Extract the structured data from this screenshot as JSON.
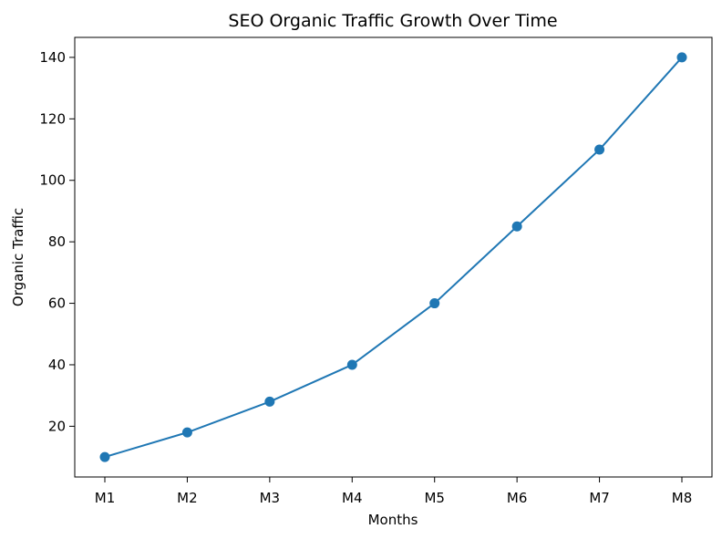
{
  "chart_data": {
    "type": "line",
    "title": "SEO Organic Traffic Growth Over Time",
    "xlabel": "Months",
    "ylabel": "Organic Traffic",
    "categories": [
      "M1",
      "M2",
      "M3",
      "M4",
      "M5",
      "M6",
      "M7",
      "M8"
    ],
    "series": [
      {
        "values": [
          10,
          18,
          28,
          40,
          60,
          85,
          110,
          140
        ],
        "color": "#1f77b4",
        "marker": "circle"
      }
    ],
    "ylim": [
      3.5,
      146.5
    ],
    "yticks": [
      20,
      40,
      60,
      80,
      100,
      120,
      140
    ],
    "grid": false,
    "legend": false
  }
}
